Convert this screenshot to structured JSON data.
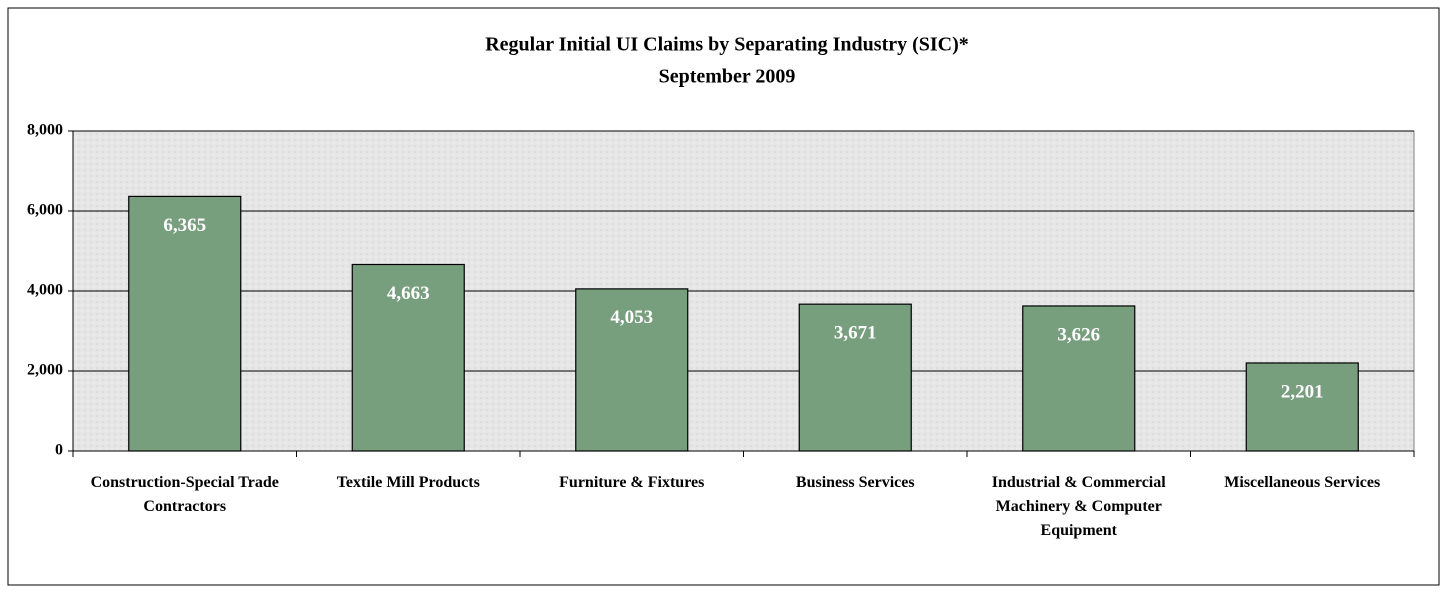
{
  "chart_data": {
    "type": "bar",
    "title": "Regular Initial UI Claims by Separating Industry (SIC)*",
    "subtitle": "September 2009",
    "categories": [
      "Construction-Special Trade Contractors",
      "Textile Mill Products",
      "Furniture & Fixtures",
      "Business Services",
      "Industrial & Commercial Machinery & Computer Equipment",
      "Miscellaneous Services"
    ],
    "values": [
      6365,
      4663,
      4053,
      3671,
      3626,
      2201
    ],
    "value_labels": [
      "6,365",
      "4,663",
      "4,053",
      "3,671",
      "3,626",
      "2,201"
    ],
    "color": "#779e7d",
    "ylim": [
      0,
      8000
    ],
    "yticks": [
      0,
      {
        "value": 2000,
        "label": "2,000"
      },
      {
        "value": 4000,
        "label": "4,000"
      },
      {
        "value": 6000,
        "label": "6,000"
      },
      {
        "value": 8000,
        "label": "8,000"
      }
    ],
    "grid": true
  }
}
